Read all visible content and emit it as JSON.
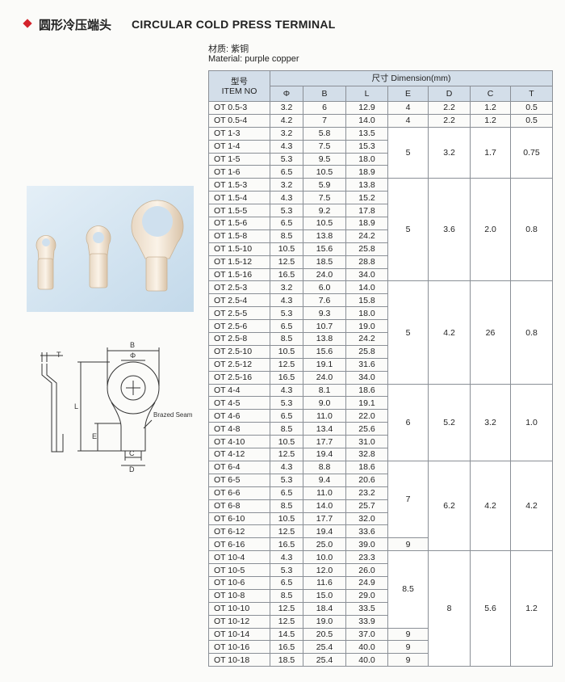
{
  "header": {
    "title_cn": "圆形冷压端头",
    "title_en": "CIRCULAR COLD PRESS TERMINAL"
  },
  "material": {
    "cn": "材质: 紫铜",
    "en": "Material: purple copper"
  },
  "diagram": {
    "labels": {
      "t": "T",
      "b": "B",
      "phi": "Φ",
      "l": "L",
      "e": "E",
      "c": "C",
      "d": "D",
      "seam": "Brazed Seam"
    }
  },
  "table": {
    "head": {
      "item_cn": "型号",
      "item_en": "ITEM NO",
      "dimension": "尺寸 Dimension(mm)",
      "columns": [
        "Φ",
        "B",
        "L",
        "E",
        "D",
        "C",
        "T"
      ]
    },
    "rows": [
      [
        "OT 0.5-3",
        "3.2",
        "6",
        "12.9",
        "4",
        "2.2",
        "1.2",
        "0.5"
      ],
      [
        "OT 0.5-4",
        "4.2",
        "7",
        "14.0",
        "4",
        "2.2",
        "1.2",
        "0.5"
      ],
      [
        "OT 1-3",
        "3.2",
        "5.8",
        "13.5",
        "5",
        "3.2",
        "1.7",
        "0.75"
      ],
      [
        "OT 1-4",
        "4.3",
        "7.5",
        "15.3",
        null,
        null,
        null,
        null
      ],
      [
        "OT 1-5",
        "5.3",
        "9.5",
        "18.0",
        null,
        null,
        null,
        null
      ],
      [
        "OT 1-6",
        "6.5",
        "10.5",
        "18.9",
        null,
        null,
        null,
        null
      ],
      [
        "OT 1.5-3",
        "3.2",
        "5.9",
        "13.8",
        "5",
        "3.6",
        "2.0",
        "0.8"
      ],
      [
        "OT 1.5-4",
        "4.3",
        "7.5",
        "15.2",
        null,
        null,
        null,
        null
      ],
      [
        "OT 1.5-5",
        "5.3",
        "9.2",
        "17.8",
        null,
        null,
        null,
        null
      ],
      [
        "OT 1.5-6",
        "6.5",
        "10.5",
        "18.9",
        null,
        null,
        null,
        null
      ],
      [
        "OT 1.5-8",
        "8.5",
        "13.8",
        "24.2",
        null,
        null,
        null,
        null
      ],
      [
        "OT 1.5-10",
        "10.5",
        "15.6",
        "25.8",
        null,
        null,
        null,
        null
      ],
      [
        "OT 1.5-12",
        "12.5",
        "18.5",
        "28.8",
        null,
        null,
        null,
        null
      ],
      [
        "OT 1.5-16",
        "16.5",
        "24.0",
        "34.0",
        null,
        null,
        null,
        null
      ],
      [
        "OT 2.5-3",
        "3.2",
        "6.0",
        "14.0",
        "5",
        "4.2",
        "26",
        "0.8"
      ],
      [
        "OT 2.5-4",
        "4.3",
        "7.6",
        "15.8",
        null,
        null,
        null,
        null
      ],
      [
        "OT 2.5-5",
        "5.3",
        "9.3",
        "18.0",
        null,
        null,
        null,
        null
      ],
      [
        "OT 2.5-6",
        "6.5",
        "10.7",
        "19.0",
        null,
        null,
        null,
        null
      ],
      [
        "OT 2.5-8",
        "8.5",
        "13.8",
        "24.2",
        null,
        null,
        null,
        null
      ],
      [
        "OT 2.5-10",
        "10.5",
        "15.6",
        "25.8",
        null,
        null,
        null,
        null
      ],
      [
        "OT 2.5-12",
        "12.5",
        "19.1",
        "31.6",
        null,
        null,
        null,
        null
      ],
      [
        "OT 2.5-16",
        "16.5",
        "24.0",
        "34.0",
        null,
        null,
        null,
        null
      ],
      [
        "OT 4-4",
        "4.3",
        "8.1",
        "18.6",
        "6",
        "5.2",
        "3.2",
        "1.0"
      ],
      [
        "OT 4-5",
        "5.3",
        "9.0",
        "19.1",
        null,
        null,
        null,
        null
      ],
      [
        "OT 4-6",
        "6.5",
        "11.0",
        "22.0",
        null,
        null,
        null,
        null
      ],
      [
        "OT 4-8",
        "8.5",
        "13.4",
        "25.6",
        null,
        null,
        null,
        null
      ],
      [
        "OT 4-10",
        "10.5",
        "17.7",
        "31.0",
        null,
        null,
        null,
        null
      ],
      [
        "OT 4-12",
        "12.5",
        "19.4",
        "32.8",
        null,
        null,
        null,
        null
      ],
      [
        "OT 6-4",
        "4.3",
        "8.8",
        "18.6",
        "7",
        "6.2",
        "4.2",
        "4.2"
      ],
      [
        "OT 6-5",
        "5.3",
        "9.4",
        "20.6",
        null,
        null,
        null,
        null
      ],
      [
        "OT 6-6",
        "6.5",
        "11.0",
        "23.2",
        null,
        null,
        null,
        null
      ],
      [
        "OT 6-8",
        "8.5",
        "14.0",
        "25.7",
        null,
        null,
        null,
        null
      ],
      [
        "OT 6-10",
        "10.5",
        "17.7",
        "32.0",
        null,
        null,
        null,
        null
      ],
      [
        "OT 6-12",
        "12.5",
        "19.4",
        "33.6",
        null,
        null,
        null,
        null
      ],
      [
        "OT 6-16",
        "16.5",
        "25.0",
        "39.0",
        "9",
        null,
        null,
        null
      ],
      [
        "OT 10-4",
        "4.3",
        "10.0",
        "23.3",
        "8.5",
        "8",
        "5.6",
        "1.2"
      ],
      [
        "OT 10-5",
        "5.3",
        "12.0",
        "26.0",
        null,
        null,
        null,
        null
      ],
      [
        "OT 10-6",
        "6.5",
        "11.6",
        "24.9",
        null,
        null,
        null,
        null
      ],
      [
        "OT 10-8",
        "8.5",
        "15.0",
        "29.0",
        null,
        null,
        null,
        null
      ],
      [
        "OT 10-10",
        "12.5",
        "18.4",
        "33.5",
        null,
        null,
        null,
        null
      ],
      [
        "OT 10-12",
        "12.5",
        "19.0",
        "33.9",
        null,
        null,
        null,
        null
      ],
      [
        "OT 10-14",
        "14.5",
        "20.5",
        "37.0",
        "9",
        null,
        null,
        null
      ],
      [
        "OT 10-16",
        "16.5",
        "25.4",
        "40.0",
        "9",
        null,
        null,
        null
      ],
      [
        "OT 10-18",
        "18.5",
        "25.4",
        "40.0",
        "9",
        null,
        null,
        null
      ]
    ]
  }
}
